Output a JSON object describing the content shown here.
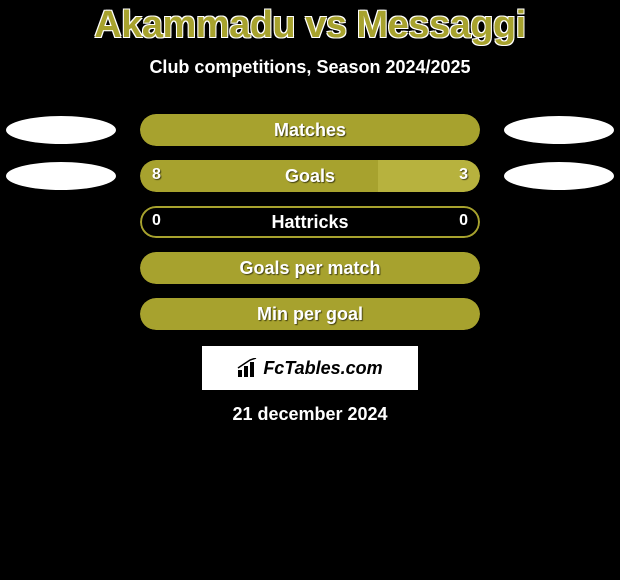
{
  "title": "Akammadu vs Messaggi",
  "subtitle": "Club competitions, Season 2024/2025",
  "date": "21 december 2024",
  "logo_text": "FcTables.com",
  "colors": {
    "background": "#000000",
    "accent": "#a7a22e",
    "accent_light": "#b7b23e",
    "ellipse": "#ffffff",
    "text": "#ffffff"
  },
  "stats": [
    {
      "label": "Matches",
      "left_val": null,
      "right_val": null,
      "left_pct": 100,
      "right_pct": 0,
      "show_ellipses": true,
      "fill_style": "full",
      "fill_color": "#a7a22e"
    },
    {
      "label": "Goals",
      "left_val": "8",
      "right_val": "3",
      "left_pct": 70,
      "right_pct": 30,
      "show_ellipses": true,
      "fill_style": "split",
      "left_color": "#a7a22e",
      "right_color": "#b7b23e"
    },
    {
      "label": "Hattricks",
      "left_val": "0",
      "right_val": "0",
      "left_pct": 0,
      "right_pct": 0,
      "show_ellipses": false,
      "fill_style": "outline"
    },
    {
      "label": "Goals per match",
      "left_val": null,
      "right_val": null,
      "left_pct": 100,
      "right_pct": 0,
      "show_ellipses": false,
      "fill_style": "full",
      "fill_color": "#a7a22e"
    },
    {
      "label": "Min per goal",
      "left_val": null,
      "right_val": null,
      "left_pct": 100,
      "right_pct": 0,
      "show_ellipses": false,
      "fill_style": "full",
      "fill_color": "#a7a22e"
    }
  ]
}
